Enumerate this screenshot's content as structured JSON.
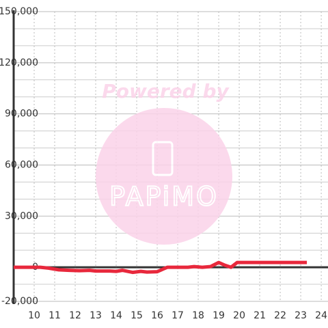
{
  "chart_data": {
    "type": "line",
    "watermark": {
      "top": "Powered by",
      "logo": "PAPiMO"
    },
    "x": [
      9,
      10.3,
      10.7,
      11.2,
      11.7,
      12.2,
      12.7,
      13,
      13.7,
      14,
      14.3,
      14.8,
      15.2,
      15.5,
      16,
      16.3,
      16.5,
      17,
      17.5,
      17.8,
      18.2,
      18.6,
      19,
      19.3,
      19.6,
      19.9,
      20.5,
      23.3
    ],
    "series": [
      {
        "color": "#e8283c",
        "values": [
          0,
          0,
          -500,
          -1500,
          -1800,
          -2000,
          -1800,
          -2200,
          -2200,
          -2400,
          -1800,
          -3000,
          -2400,
          -2800,
          -2600,
          -1000,
          0,
          0,
          0,
          400,
          0,
          400,
          2800,
          1200,
          0,
          2800,
          2800,
          2800
        ]
      }
    ],
    "xlim": [
      9,
      24.33
    ],
    "xticks": [
      10,
      11,
      12,
      13,
      14,
      15,
      16,
      17,
      18,
      19,
      20,
      21,
      22,
      23,
      24
    ],
    "ylim": [
      -20000,
      150000
    ],
    "yticks": [
      {
        "value": -20000,
        "label": "-20,000"
      },
      0,
      {
        "value": 30000,
        "label": "30,000"
      },
      {
        "value": 60000,
        "label": "60,000"
      },
      {
        "value": 90000,
        "label": "90,000"
      },
      {
        "value": 120000,
        "label": "120,000"
      },
      {
        "value": 150000,
        "label": "150,000"
      }
    ],
    "y_minor_ticks": [
      -10000,
      10000,
      20000,
      40000,
      50000,
      70000,
      80000,
      100000,
      110000,
      130000,
      140000
    ],
    "grid": true
  }
}
